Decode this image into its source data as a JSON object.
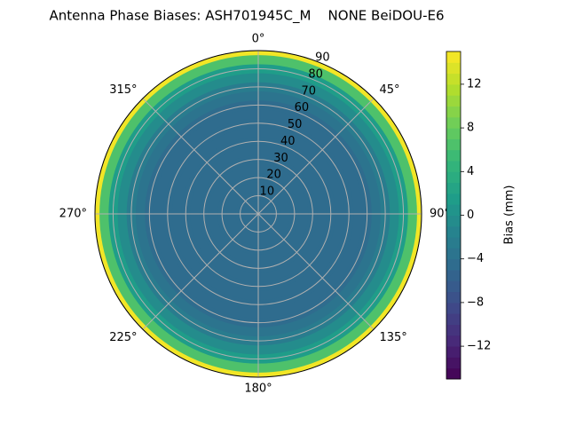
{
  "chart_data": {
    "type": "polar_contour",
    "title": "Antenna Phase Biases: ASH701945C_M    NONE BeiDOU-E6",
    "zenith": [
      0,
      5,
      10,
      15,
      20,
      25,
      30,
      35,
      40,
      45,
      50,
      55,
      60,
      65,
      70,
      75,
      80,
      85,
      90
    ],
    "bias": [
      -5,
      -5,
      -5,
      -5,
      -5,
      -5,
      -5,
      -5,
      -5,
      -5,
      -4.8,
      -4.5,
      -4.2,
      -3.6,
      -2.6,
      -1,
      1.5,
      6,
      14
    ],
    "rlim": [
      0,
      90
    ],
    "rticks": [
      10,
      20,
      30,
      40,
      50,
      60,
      70,
      80,
      90
    ],
    "theta_ticks": [
      {
        "value": 0,
        "label": "0°"
      },
      {
        "value": 45,
        "label": "45°"
      },
      {
        "value": 90,
        "label": "90°"
      },
      {
        "value": 135,
        "label": "135°"
      },
      {
        "value": 180,
        "label": "180°"
      },
      {
        "value": 225,
        "label": "225°"
      },
      {
        "value": 270,
        "label": "270°"
      },
      {
        "value": 315,
        "label": "315°"
      }
    ],
    "grid": true,
    "colormap": "viridis",
    "clim": [
      -15,
      15
    ],
    "colorbar_label": "Bias (mm)",
    "colorbar_ticks": [
      {
        "value": -12,
        "label": "−12"
      },
      {
        "value": -8,
        "label": "−8"
      },
      {
        "value": -4,
        "label": "−4"
      },
      0,
      4,
      8,
      12
    ]
  }
}
